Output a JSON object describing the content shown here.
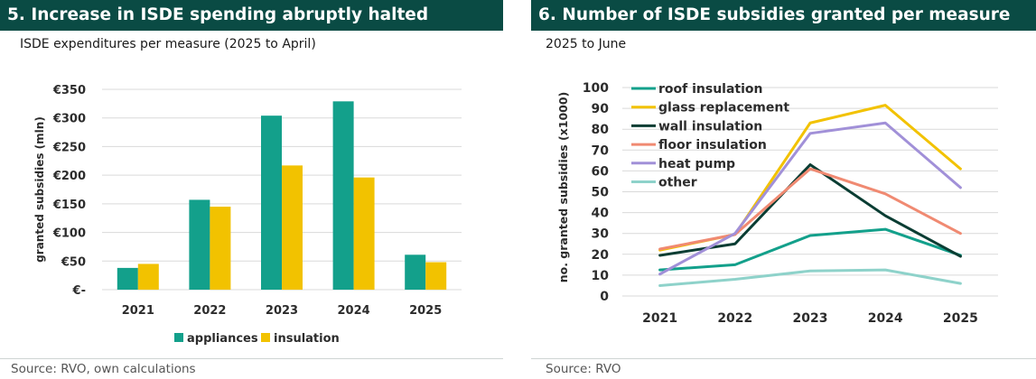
{
  "left_panel": {
    "title": "5.  Increase in ISDE spending abruptly halted",
    "subtitle": "ISDE expenditures per measure (2025 to April)",
    "source": "Source: RVO, own calculations"
  },
  "right_panel": {
    "title": "6.  Number of ISDE subsidies granted per measure",
    "subtitle": "2025 to June",
    "source": "Source: RVO"
  },
  "chart_data": [
    {
      "type": "bar",
      "ylabel": "granted subsidies (mln)",
      "categories": [
        "2021",
        "2022",
        "2023",
        "2024",
        "2025"
      ],
      "ylim": [
        0,
        350
      ],
      "y_ticks": [
        0,
        50,
        100,
        150,
        200,
        250,
        300,
        350
      ],
      "y_tick_labels": [
        "€-",
        "€50",
        "€100",
        "€150",
        "€200",
        "€250",
        "€300",
        "€350"
      ],
      "grid": true,
      "legend_position": "bottom",
      "series": [
        {
          "name": "appliances",
          "color": "#13a08b",
          "values": [
            38,
            157,
            304,
            329,
            61
          ]
        },
        {
          "name": "insulation",
          "color": "#f2c200",
          "values": [
            45,
            145,
            217,
            196,
            48
          ]
        }
      ]
    },
    {
      "type": "line",
      "ylabel": "no. granted subsidies (x1000)",
      "x": [
        "2021",
        "2022",
        "2023",
        "2024",
        "2025"
      ],
      "ylim": [
        0,
        100
      ],
      "y_ticks": [
        0,
        10,
        20,
        30,
        40,
        50,
        60,
        70,
        80,
        90,
        100
      ],
      "grid": true,
      "legend_position": "top-left",
      "series": [
        {
          "name": "roof insulation",
          "color": "#13a08b",
          "values": [
            12.5,
            15,
            29,
            32,
            19.5
          ]
        },
        {
          "name": "glass replacement",
          "color": "#f2c200",
          "values": [
            22,
            29.5,
            83,
            91.5,
            61
          ]
        },
        {
          "name": "wall insulation",
          "color": "#0a3d33",
          "values": [
            19.5,
            25,
            63,
            38.5,
            19
          ]
        },
        {
          "name": "floor insulation",
          "color": "#f08a72",
          "values": [
            22.5,
            29.5,
            61,
            49,
            30
          ]
        },
        {
          "name": "heat pump",
          "color": "#a190d8",
          "values": [
            10.5,
            30,
            78,
            83,
            52
          ]
        },
        {
          "name": "other",
          "color": "#8ed2ca",
          "values": [
            5,
            8,
            12,
            12.5,
            6
          ]
        }
      ]
    }
  ]
}
